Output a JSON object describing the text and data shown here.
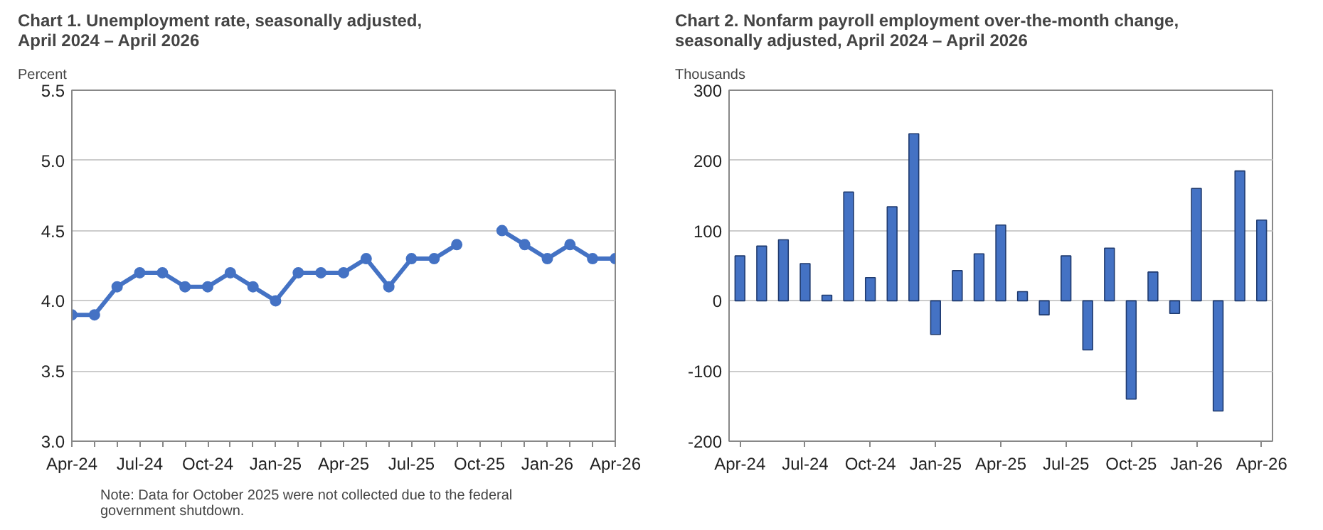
{
  "chart_data": [
    {
      "type": "line",
      "title": "Chart 1. Unemployment rate, seasonally adjusted, April 2024 – April 2026",
      "ylabel": "Percent",
      "categories": [
        "Apr-24",
        null,
        null,
        "Jul-24",
        null,
        null,
        "Oct-24",
        null,
        null,
        "Jan-25",
        null,
        null,
        "Apr-25",
        null,
        null,
        "Jul-25",
        null,
        null,
        "Oct-25",
        null,
        null,
        "Jan-26",
        null,
        null,
        "Apr-26"
      ],
      "values": [
        3.9,
        3.9,
        4.1,
        4.2,
        4.2,
        4.1,
        4.1,
        4.2,
        4.1,
        4.0,
        4.2,
        4.2,
        4.2,
        4.3,
        4.1,
        4.3,
        4.3,
        4.4,
        null,
        4.5,
        4.4,
        4.3,
        4.4,
        4.3,
        4.3
      ],
      "color": "#4472c4",
      "marker": "circle",
      "line_style": "solid",
      "ylim": [
        3.0,
        5.5
      ],
      "yticks": [
        {
          "value": 3,
          "label": "3.0"
        },
        3.5,
        {
          "value": 4,
          "label": "4.0"
        },
        4.5,
        {
          "value": 5,
          "label": "5.0"
        },
        5.5
      ],
      "grid": "y",
      "annotations": [
        "Note: Data for October 2025 were not collected due to the federal government shutdown."
      ]
    },
    {
      "type": "bar",
      "title": "Chart 2. Nonfarm payroll employment over-the-month change, seasonally adjusted, April 2024 – April 2026",
      "ylabel": "Thousands",
      "categories": [
        "Apr-24",
        null,
        null,
        "Jul-24",
        null,
        null,
        "Oct-24",
        null,
        null,
        "Jan-25",
        null,
        null,
        "Apr-25",
        null,
        null,
        "Jul-25",
        null,
        null,
        "Oct-25",
        null,
        null,
        "Jan-26",
        null,
        null,
        "Apr-26"
      ],
      "values": [
        64,
        78,
        87,
        53,
        8,
        155,
        33,
        134,
        238,
        -48,
        43,
        67,
        108,
        13,
        -20,
        64,
        -70,
        75,
        -140,
        41,
        -18,
        160,
        -157,
        185,
        115
      ],
      "color": "#4472c4",
      "ylim": [
        -200,
        300
      ],
      "yticks": [
        -200,
        -100,
        0,
        100,
        200,
        300
      ],
      "grid": "y"
    }
  ]
}
